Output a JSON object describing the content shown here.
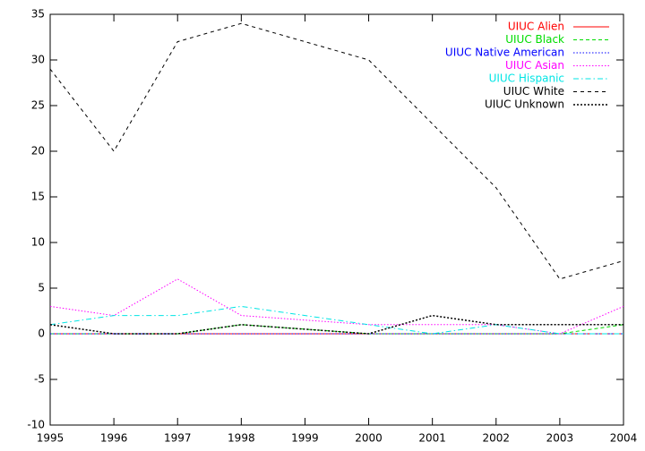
{
  "chart_data": {
    "type": "line",
    "x": [
      1995,
      1996,
      1997,
      1998,
      2000,
      2001,
      2002,
      2003,
      2004
    ],
    "xlim": [
      1995,
      2004
    ],
    "xticks": [
      1995,
      1996,
      1997,
      1998,
      1999,
      2000,
      2001,
      2002,
      2003,
      2004
    ],
    "ylim": [
      -10,
      35
    ],
    "yticks": [
      -10,
      -5,
      0,
      5,
      10,
      15,
      20,
      25,
      30,
      35
    ],
    "legend": "top-right",
    "series": [
      {
        "name": "UIUC Alien",
        "color": "#ff0000",
        "style": "solid",
        "values": [
          0,
          0,
          0,
          0,
          0,
          0,
          0,
          0,
          0
        ]
      },
      {
        "name": "UIUC Black",
        "color": "#00dd00",
        "style": "dashed",
        "values": [
          0,
          0,
          0,
          1,
          0,
          0,
          0,
          0,
          1
        ]
      },
      {
        "name": "UIUC Native American",
        "color": "#0000ff",
        "style": "dotted",
        "values": [
          0,
          0,
          0,
          0,
          0,
          0,
          0,
          0,
          0
        ]
      },
      {
        "name": "UIUC Asian",
        "color": "#ff00ff",
        "style": "dotted",
        "values": [
          3,
          2,
          6,
          2,
          1,
          1,
          1,
          0,
          3
        ]
      },
      {
        "name": "UIUC Hispanic",
        "color": "#00e5e5",
        "style": "dashdot",
        "values": [
          1,
          2,
          2,
          3,
          1,
          0,
          1,
          0,
          0
        ]
      },
      {
        "name": "UIUC White",
        "color": "#000000",
        "style": "longdash",
        "values": [
          29,
          20,
          32,
          34,
          30,
          23,
          16,
          6,
          8
        ]
      },
      {
        "name": "UIUC Unknown",
        "color": "#000000",
        "style": "densedot",
        "values": [
          1,
          0,
          0,
          1,
          0,
          2,
          1,
          1,
          1
        ]
      }
    ]
  }
}
